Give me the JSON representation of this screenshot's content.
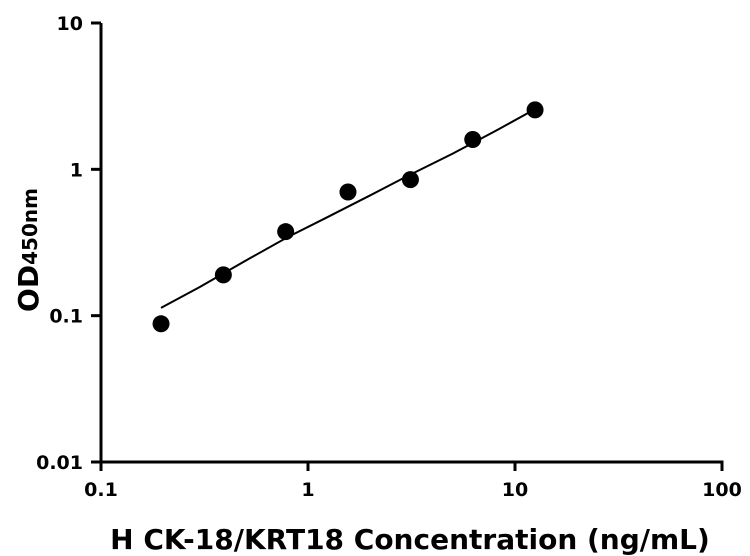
{
  "chart_data": {
    "type": "scatter",
    "xscale": "log",
    "yscale": "log",
    "xlim": [
      0.1,
      100
    ],
    "ylim": [
      0.01,
      10
    ],
    "xticks": [
      0.1,
      1,
      10,
      100
    ],
    "xtick_labels": [
      "0.1",
      "1",
      "10",
      "100"
    ],
    "yticks": [
      0.01,
      0.1,
      1,
      10
    ],
    "ytick_labels": [
      "0.01",
      "0.1",
      "1",
      "10"
    ],
    "xlabel": "H CK-18/KRT18 Concentration (ng/mL)",
    "ylabel_main": "OD",
    "ylabel_sub": "450nm",
    "grid": false,
    "legend": "none",
    "points": [
      {
        "x": 0.195,
        "y": 0.088
      },
      {
        "x": 0.39,
        "y": 0.19
      },
      {
        "x": 0.78,
        "y": 0.375
      },
      {
        "x": 1.56,
        "y": 0.7
      },
      {
        "x": 3.125,
        "y": 0.85
      },
      {
        "x": 6.25,
        "y": 1.6
      },
      {
        "x": 12.5,
        "y": 2.55
      }
    ],
    "fit_curve": [
      {
        "x": 0.195,
        "y": 0.113
      },
      {
        "x": 0.3,
        "y": 0.157
      },
      {
        "x": 0.5,
        "y": 0.238
      },
      {
        "x": 0.8,
        "y": 0.345
      },
      {
        "x": 1.2,
        "y": 0.46
      },
      {
        "x": 2,
        "y": 0.665
      },
      {
        "x": 3,
        "y": 0.895
      },
      {
        "x": 5,
        "y": 1.28
      },
      {
        "x": 8,
        "y": 1.82
      },
      {
        "x": 12.5,
        "y": 2.58
      }
    ],
    "point_color": "#000000",
    "line_color": "#000000"
  }
}
